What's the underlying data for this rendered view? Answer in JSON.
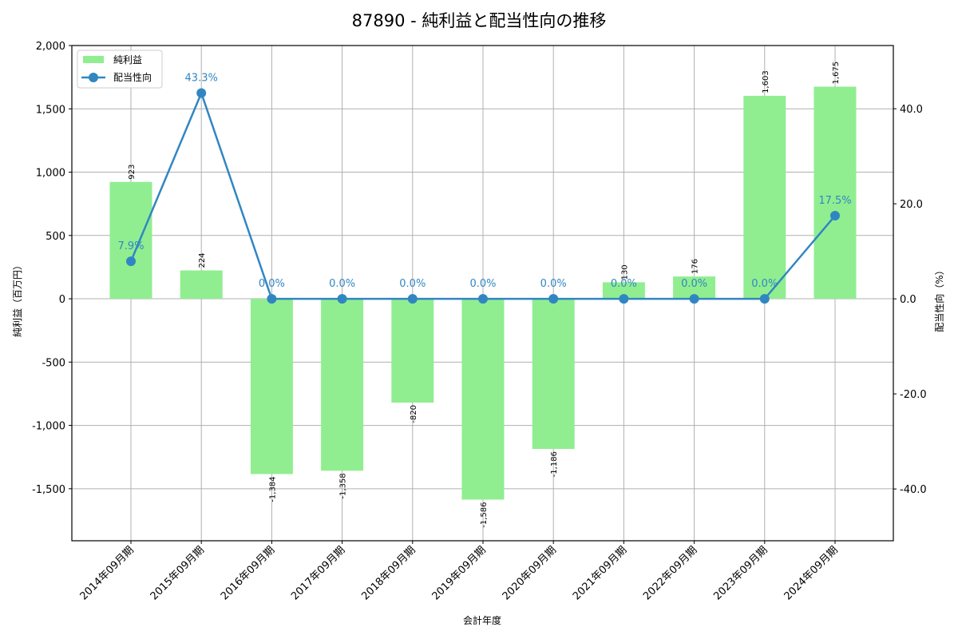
{
  "chart_data": {
    "type": "bar+line",
    "title": "87890 - 純利益と配当性向の推移",
    "xlabel": "会計年度",
    "ylabel": "純利益（百万円）",
    "ylabel_right": "配当性向（%）",
    "categories": [
      "2014年09月期",
      "2015年09月期",
      "2016年09月期",
      "2017年09月期",
      "2018年09月期",
      "2019年09月期",
      "2020年09月期",
      "2021年09月期",
      "2022年09月期",
      "2023年09月期",
      "2024年09月期"
    ],
    "series": [
      {
        "name": "純利益",
        "type": "bar",
        "axis": "left",
        "color": "#90ee90",
        "values": [
          923,
          224,
          -1384,
          -1358,
          -820,
          -1586,
          -1186,
          130,
          176,
          1603,
          1675
        ],
        "labels": [
          "923",
          "224",
          "-1,384",
          "-1,358",
          "-820",
          "-1,586",
          "-1,186",
          "130",
          "176",
          "1,603",
          "1,675"
        ]
      },
      {
        "name": "配当性向",
        "type": "line",
        "axis": "right",
        "color": "#3186c2",
        "values": [
          7.9,
          43.3,
          0.0,
          0.0,
          0.0,
          0.0,
          0.0,
          0.0,
          0.0,
          0.0,
          17.5
        ],
        "labels": [
          "7.9%",
          "43.3%",
          "0.0%",
          "0.0%",
          "0.0%",
          "0.0%",
          "0.0%",
          "0.0%",
          "0.0%",
          "0.0%",
          "17.5%"
        ]
      }
    ],
    "ylim": [
      -1911,
      2000
    ],
    "ylim_right": [
      -50.9,
      53.3
    ],
    "yticks": [
      -1500,
      -1000,
      -500,
      0,
      500,
      1000,
      1500,
      2000
    ],
    "ytick_labels": [
      "-1,500",
      "-1,000",
      "-500",
      "0",
      "500",
      "1,000",
      "1,500",
      "2,000"
    ],
    "yticks_right": [
      -40,
      -20,
      0,
      20,
      40
    ],
    "ytick_labels_right": [
      "-40.0",
      "-20.0",
      "0.0",
      "20.0",
      "40.0"
    ],
    "grid": true,
    "legend_position": "upper left"
  }
}
